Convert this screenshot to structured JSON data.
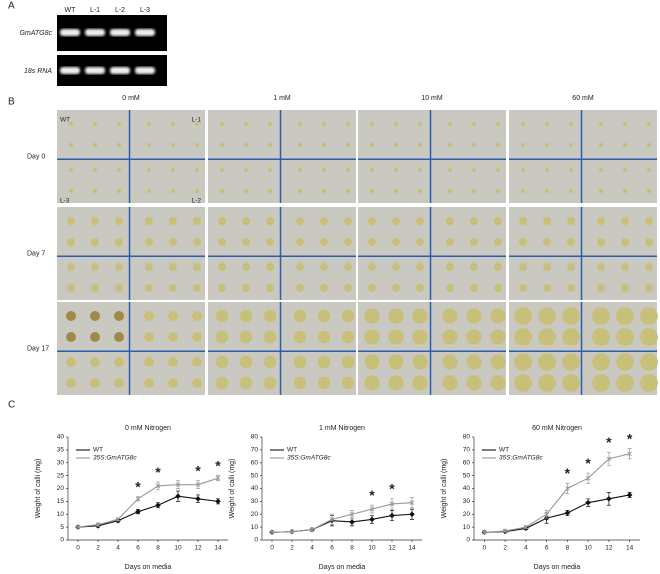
{
  "panel_a": {
    "label": "A",
    "lanes": [
      "WT",
      "L-1",
      "L-2",
      "L-3"
    ],
    "rows": [
      "GmATG8c",
      "18s RNA"
    ]
  },
  "panel_b": {
    "label": "B",
    "columns": [
      "0 mM",
      "1 mM",
      "10 mM",
      "60 mM"
    ],
    "rows": [
      "Day 0",
      "Day 7",
      "Day 17"
    ],
    "plate_labels": [
      "WT",
      "L-1",
      "L-3",
      "L-2"
    ]
  },
  "panel_c": {
    "label": "C"
  },
  "chart_data": [
    {
      "type": "line",
      "title": "0 mM Nitrogen",
      "x_label": "Days on media",
      "y_label": "Weight of calli (mg)",
      "x": [
        0,
        2,
        4,
        6,
        8,
        10,
        12,
        14
      ],
      "xlim": [
        -1,
        15
      ],
      "xticks": [
        0,
        2,
        4,
        6,
        8,
        10,
        12,
        14
      ],
      "ylim": [
        0,
        40
      ],
      "yticks": [
        0,
        5,
        10,
        15,
        20,
        25,
        30,
        35,
        40
      ],
      "series": [
        {
          "name": "WT",
          "color": "#111111",
          "values": [
            5,
            5.5,
            7.5,
            11,
            13.5,
            17,
            16,
            15
          ],
          "errors": [
            0.3,
            0.5,
            0.5,
            0.8,
            1,
            2,
            1.5,
            1
          ]
        },
        {
          "name": "35S:GmATG8c",
          "color": "#999999",
          "values": [
            5,
            6,
            8,
            16,
            21,
            21.5,
            21.5,
            24
          ],
          "errors": [
            0.3,
            0.5,
            0.5,
            0.8,
            1.5,
            1.5,
            1.5,
            1
          ]
        }
      ],
      "annotations": [
        {
          "text": "*",
          "x": 6
        },
        {
          "text": "*",
          "x": 8
        },
        {
          "text": "*",
          "x": 12
        },
        {
          "text": "*",
          "x": 14
        }
      ]
    },
    {
      "type": "line",
      "title": "1 mM Nitrogen",
      "x_label": "Days on media",
      "y_label": "Weight of calli (mg)",
      "x": [
        0,
        2,
        4,
        6,
        8,
        10,
        12,
        14
      ],
      "xlim": [
        -1,
        15
      ],
      "xticks": [
        0,
        2,
        4,
        6,
        8,
        10,
        12,
        14
      ],
      "ylim": [
        0,
        80
      ],
      "yticks": [
        0,
        10,
        20,
        30,
        40,
        50,
        60,
        70,
        80
      ],
      "series": [
        {
          "name": "WT",
          "color": "#111111",
          "values": [
            6,
            6.5,
            8,
            15,
            14,
            16,
            19,
            20
          ],
          "errors": [
            0.5,
            0.5,
            1,
            4,
            3,
            3,
            4,
            4
          ]
        },
        {
          "name": "35S:GmATG8c",
          "color": "#999999",
          "values": [
            6,
            6.5,
            8,
            16,
            20,
            24,
            28,
            29
          ],
          "errors": [
            0.5,
            0.5,
            1,
            4,
            3,
            3,
            4,
            4
          ]
        }
      ],
      "annotations": [
        {
          "text": "*",
          "x": 10
        },
        {
          "text": "*",
          "x": 12
        }
      ]
    },
    {
      "type": "line",
      "title": "60 mM Nitrogen",
      "x_label": "Days on media",
      "y_label": "Weight of calli (mg)",
      "x": [
        0,
        2,
        4,
        6,
        8,
        10,
        12,
        14
      ],
      "xlim": [
        -1,
        15
      ],
      "xticks": [
        0,
        2,
        4,
        6,
        8,
        10,
        12,
        14
      ],
      "ylim": [
        0,
        80
      ],
      "yticks": [
        0,
        10,
        20,
        30,
        40,
        50,
        60,
        70,
        80
      ],
      "series": [
        {
          "name": "WT",
          "color": "#111111",
          "values": [
            6,
            6.5,
            9,
            17,
            21,
            29,
            32,
            35
          ],
          "errors": [
            0.5,
            0.5,
            1,
            4,
            2,
            3,
            5,
            2
          ]
        },
        {
          "name": "35S:GmATG8c",
          "color": "#999999",
          "values": [
            6,
            7,
            10,
            20,
            40,
            48,
            63,
            67
          ],
          "errors": [
            0.5,
            0.5,
            1,
            3,
            4,
            4,
            5,
            4
          ]
        }
      ],
      "annotations": [
        {
          "text": "*",
          "x": 8
        },
        {
          "text": "*",
          "x": 10
        },
        {
          "text": "*",
          "x": 12
        },
        {
          "text": "*",
          "x": 14
        }
      ]
    }
  ]
}
